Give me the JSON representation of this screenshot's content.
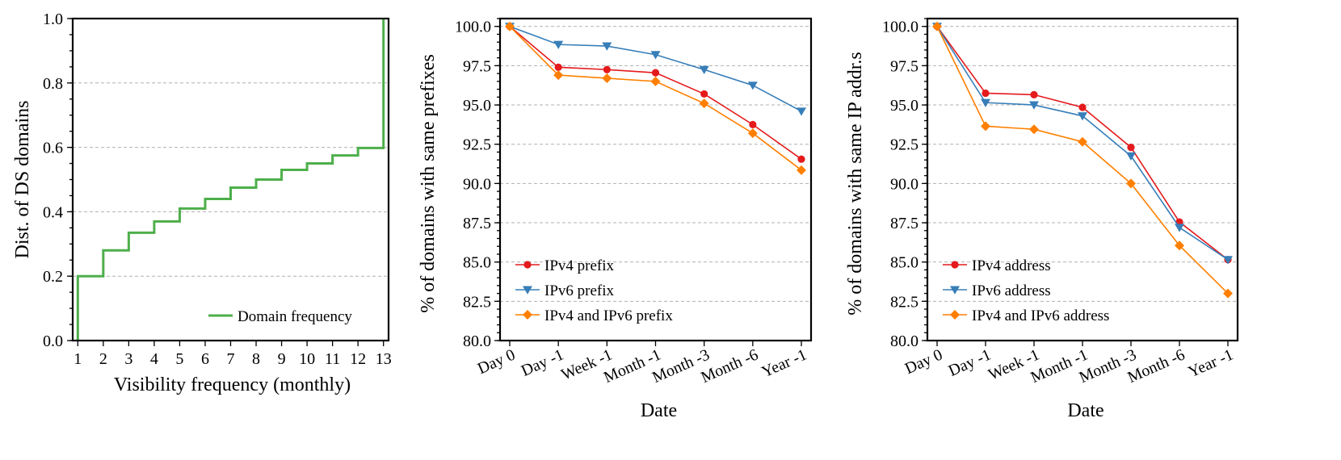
{
  "chart_data": [
    {
      "type": "step",
      "title": "",
      "xlabel": "Visibility frequency (monthly)",
      "ylabel": "Dist. of  DS domains",
      "xlim": [
        0.8,
        13.2
      ],
      "ylim": [
        0.0,
        1.0
      ],
      "x_ticks": [
        "1",
        "2",
        "3",
        "4",
        "5",
        "6",
        "7",
        "8",
        "9",
        "10",
        "11",
        "12",
        "13"
      ],
      "y_ticks": [
        "0.0",
        "0.2",
        "0.4",
        "0.6",
        "0.8",
        "1.0"
      ],
      "grid": "horizontal dashed",
      "legend_position": "lower-right",
      "colors": {
        "Domain frequency": "#4daf4a"
      },
      "series": [
        {
          "name": "Domain frequency",
          "x": [
            1,
            2,
            3,
            4,
            5,
            6,
            7,
            8,
            9,
            10,
            11,
            12,
            13
          ],
          "y": [
            0.2,
            0.28,
            0.335,
            0.37,
            0.41,
            0.44,
            0.475,
            0.5,
            0.53,
            0.55,
            0.575,
            0.598,
            1.0
          ]
        }
      ]
    },
    {
      "type": "line",
      "title": "",
      "xlabel": "Date",
      "ylabel": "% of domains with same prefixes",
      "categories": [
        "Day 0",
        "Day -1",
        "Week -1",
        "Month -1",
        "Month -3",
        "Month -6",
        "Year -1"
      ],
      "ylim": [
        80.0,
        100.5
      ],
      "y_ticks": [
        "80.0",
        "82.5",
        "85.0",
        "87.5",
        "90.0",
        "92.5",
        "95.0",
        "97.5",
        "100.0"
      ],
      "grid": "horizontal dashed",
      "legend_position": "lower-left",
      "colors": {
        "IPv4 prefix": "#e41a1c",
        "IPv6 prefix": "#377eb8",
        "IPv4 and IPv6 prefix": "#ff7f00"
      },
      "series": [
        {
          "name": "IPv4 prefix",
          "marker": "circle",
          "values": [
            100.0,
            97.4,
            97.25,
            97.05,
            95.7,
            93.75,
            91.55
          ]
        },
        {
          "name": "IPv6 prefix",
          "marker": "triangle-down",
          "values": [
            100.0,
            98.85,
            98.75,
            98.2,
            97.25,
            96.25,
            94.6
          ]
        },
        {
          "name": "IPv4 and IPv6 prefix",
          "marker": "diamond",
          "values": [
            100.0,
            96.9,
            96.7,
            96.5,
            95.1,
            93.2,
            90.85
          ]
        }
      ]
    },
    {
      "type": "line",
      "title": "",
      "xlabel": "Date",
      "ylabel": "% of domains with same IP addr.s",
      "categories": [
        "Day 0",
        "Day -1",
        "Week -1",
        "Month -1",
        "Month -3",
        "Month -6",
        "Year -1"
      ],
      "ylim": [
        80.0,
        100.5
      ],
      "y_ticks": [
        "80.0",
        "82.5",
        "85.0",
        "87.5",
        "90.0",
        "92.5",
        "95.0",
        "97.5",
        "100.0"
      ],
      "grid": "horizontal dashed",
      "legend_position": "lower-left",
      "colors": {
        "IPv4 address": "#e41a1c",
        "IPv6 address": "#377eb8",
        "IPv4 and IPv6 address": "#ff7f00"
      },
      "series": [
        {
          "name": "IPv4 address",
          "marker": "circle",
          "values": [
            100.0,
            95.75,
            95.65,
            94.85,
            92.3,
            87.55,
            85.15
          ]
        },
        {
          "name": "IPv6 address",
          "marker": "triangle-down",
          "values": [
            100.0,
            95.15,
            95.0,
            94.3,
            91.75,
            87.2,
            85.15
          ]
        },
        {
          "name": "IPv4 and IPv6 address",
          "marker": "diamond",
          "values": [
            100.0,
            93.65,
            93.45,
            92.65,
            90.0,
            86.05,
            83.0
          ]
        }
      ]
    }
  ]
}
